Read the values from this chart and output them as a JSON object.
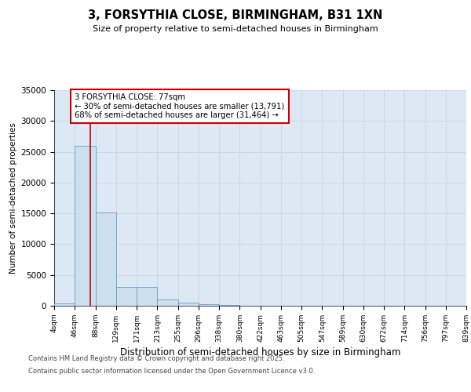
{
  "title": "3, FORSYTHIA CLOSE, BIRMINGHAM, B31 1XN",
  "subtitle": "Size of property relative to semi-detached houses in Birmingham",
  "xlabel": "Distribution of semi-detached houses by size in Birmingham",
  "ylabel": "Number of semi-detached properties",
  "property_size": 77,
  "annotation_text": "3 FORSYTHIA CLOSE: 77sqm\n← 30% of semi-detached houses are smaller (13,791)\n68% of semi-detached houses are larger (31,464) →",
  "bin_edges": [
    4,
    46,
    88,
    129,
    171,
    213,
    255,
    296,
    338,
    380,
    422,
    463,
    505,
    547,
    589,
    630,
    672,
    714,
    756,
    797,
    839
  ],
  "bin_counts": [
    400,
    26000,
    15100,
    3100,
    3100,
    1000,
    500,
    300,
    100,
    0,
    0,
    0,
    0,
    0,
    0,
    0,
    0,
    0,
    0,
    0
  ],
  "bar_color": "#cce0f0",
  "bar_edge_color": "#6699cc",
  "red_line_color": "#cc0000",
  "annotation_box_color": "#ffffff",
  "annotation_box_edge": "#cc0000",
  "grid_color": "#c8d8e8",
  "background_color": "#dde8f5",
  "ylim": [
    0,
    35000
  ],
  "yticks": [
    0,
    5000,
    10000,
    15000,
    20000,
    25000,
    30000,
    35000
  ],
  "footer_line1": "Contains HM Land Registry data © Crown copyright and database right 2025.",
  "footer_line2": "Contains public sector information licensed under the Open Government Licence v3.0."
}
